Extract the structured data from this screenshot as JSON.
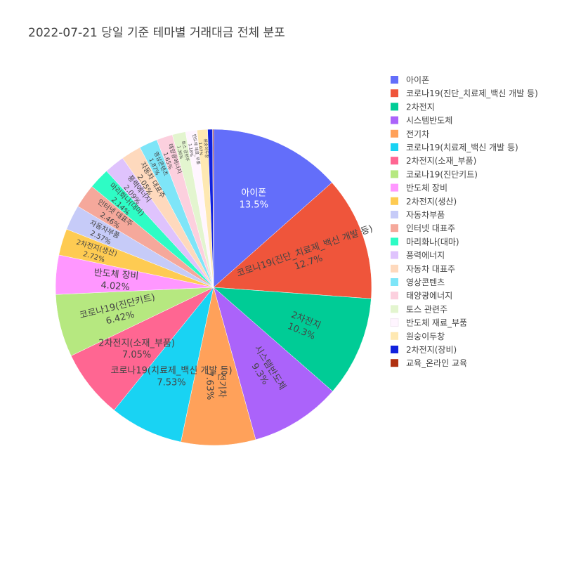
{
  "chart_data": {
    "type": "pie",
    "title": "2022-07-21 당일 기준 테마별 거래대금 전체 분포",
    "direction": "clockwise",
    "start_angle_deg": 0,
    "slices": [
      {
        "label": "아이폰",
        "value": 13.5,
        "text": "13.5%",
        "color": "#636efa",
        "text_inside": "light"
      },
      {
        "label": "코로나19(진단_치료제_백신 개발 등)",
        "value": 12.7,
        "text": "12.7%",
        "color": "#EF553B",
        "text_inside": "dark"
      },
      {
        "label": "2차전지",
        "value": 10.3,
        "text": "10.3%",
        "color": "#00cc96",
        "text_inside": "dark"
      },
      {
        "label": "시스템반도체",
        "value": 9.3,
        "text": "9.3%",
        "color": "#ab63fa",
        "text_inside": "dark"
      },
      {
        "label": "전기차",
        "value": 7.63,
        "text": "7.63%",
        "color": "#FFA15A",
        "text_inside": "dark"
      },
      {
        "label": "코로나19(치료제_백신 개발 등)",
        "value": 7.53,
        "text": "7.53%",
        "color": "#19d3f3",
        "text_inside": "dark"
      },
      {
        "label": "2차전지(소재_부품)",
        "value": 7.05,
        "text": "7.05%",
        "color": "#FF6692",
        "text_inside": "dark"
      },
      {
        "label": "코로나19(진단키트)",
        "value": 6.42,
        "text": "6.42%",
        "color": "#B6E880",
        "text_inside": "dark"
      },
      {
        "label": "반도체 장비",
        "value": 4.02,
        "text": "4.02%",
        "color": "#FF97FF",
        "text_inside": "dark"
      },
      {
        "label": "2차전지(생산)",
        "value": 2.72,
        "text": "2.72%",
        "color": "#FECB52",
        "text_inside": "dark"
      },
      {
        "label": "자동차부품",
        "value": 2.57,
        "text": "2.57%",
        "color": "#c6cbf8",
        "text_inside": "dark"
      },
      {
        "label": "인터넷 대표주",
        "value": 2.46,
        "text": "2.46%",
        "color": "#f5a89b",
        "text_inside": "dark"
      },
      {
        "label": "마리화나(대마)",
        "value": 2.14,
        "text": "2.14%",
        "color": "#2efcc5",
        "text_inside": "dark"
      },
      {
        "label": "풍력에너지",
        "value": 2.09,
        "text": "2.09%",
        "color": "#dfc3fd",
        "text_inside": "dark"
      },
      {
        "label": "자동차 대표주",
        "value": 2.05,
        "text": "2.05%",
        "color": "#fed9bd",
        "text_inside": "dark"
      },
      {
        "label": "영상콘텐츠",
        "value": 1.87,
        "text": "1.87%",
        "color": "#7ee5f8",
        "text_inside": "dark"
      },
      {
        "label": "태양광에너지",
        "value": 1.65,
        "text": "1.65%",
        "color": "#fcd0de",
        "text_inside": "dark"
      },
      {
        "label": "토스 관련주",
        "value": 1.36,
        "text": "1.36%",
        "color": "#e3f5cf",
        "text_inside": "dark"
      },
      {
        "label": "반도체 재료_부품",
        "value": 1.18,
        "text": "1.18%",
        "color": "#fff5ff",
        "text_inside": "dark"
      },
      {
        "label": "원숭이두창",
        "value": 1.07,
        "text": "1.07%",
        "color": "#fee8b2",
        "text_inside": "dark"
      },
      {
        "label": "2차전지(장비)",
        "value": 0.5,
        "text": "",
        "color": "#1122dd",
        "text_inside": "light"
      },
      {
        "label": "교육_온라인 교육",
        "value": 0.1,
        "text": "",
        "color": "#b03010",
        "text_inside": "light"
      }
    ],
    "legend_position": "right"
  }
}
